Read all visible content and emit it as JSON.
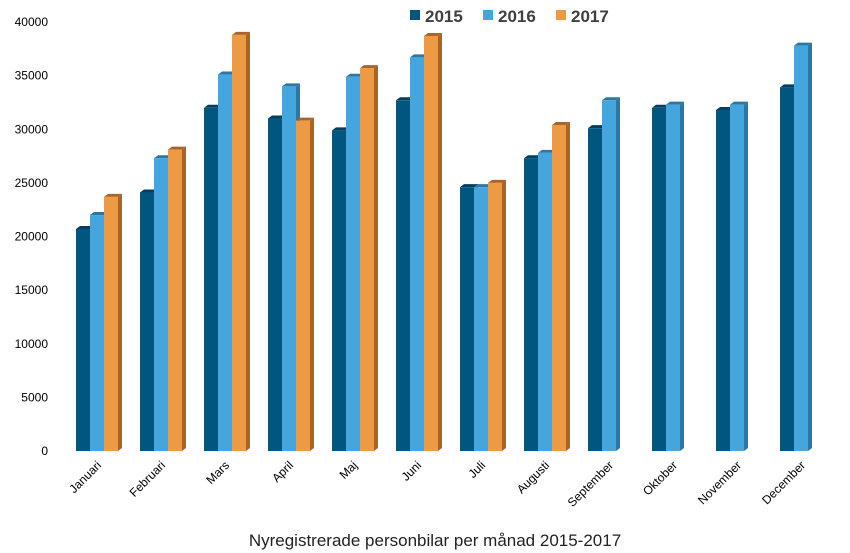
{
  "chart_data": {
    "type": "bar",
    "title": "Nyregistrerade personbilar per månad 2015-2017",
    "xlabel": "",
    "ylabel": "",
    "ylim": [
      0,
      40000
    ],
    "yticks": [
      0,
      5000,
      10000,
      15000,
      20000,
      25000,
      30000,
      35000,
      40000
    ],
    "grid": false,
    "legend_position": "top",
    "style": "3d-clustered-bar",
    "categories": [
      "Januari",
      "Februari",
      "Mars",
      "April",
      "Maj",
      "Juni",
      "Juli",
      "Augusti",
      "September",
      "Oktober",
      "November",
      "December"
    ],
    "series": [
      {
        "name": "2015",
        "color": "#01567f",
        "side": "#013f5e",
        "values": [
          20700,
          24100,
          32000,
          31000,
          29900,
          32700,
          24600,
          27300,
          30100,
          32000,
          31800,
          33900
        ]
      },
      {
        "name": "2016",
        "color": "#45a6df",
        "side": "#2e77a3",
        "values": [
          22000,
          27300,
          35100,
          34000,
          34900,
          36700,
          24600,
          27800,
          32700,
          32300,
          32300,
          37800
        ]
      },
      {
        "name": "2017",
        "color": "#ec9a43",
        "side": "#a8642a",
        "values": [
          23700,
          28100,
          38800,
          30800,
          35700,
          38700,
          25000,
          30400,
          null,
          null,
          null,
          null
        ]
      }
    ]
  }
}
